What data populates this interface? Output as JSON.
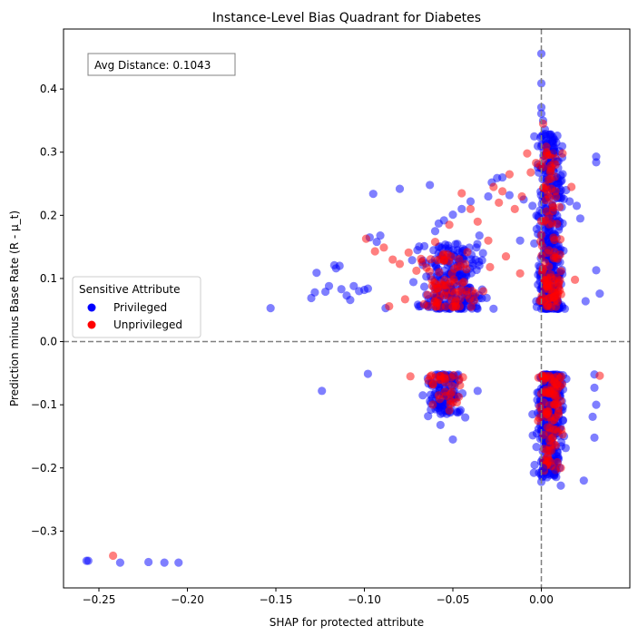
{
  "chart_data": {
    "type": "scatter",
    "title": "Instance-Level Bias Quadrant for Diabetes",
    "xlabel": "SHAP for protected attribute",
    "ylabel": "Prediction minus Base Rate (R - μ_t)",
    "xlim": [
      -0.27,
      0.05
    ],
    "ylim": [
      -0.39,
      0.495
    ],
    "xticks": [
      -0.25,
      -0.2,
      -0.15,
      -0.1,
      -0.05,
      0.0
    ],
    "xtick_labels": [
      "−0.25",
      "−0.20",
      "−0.15",
      "−0.10",
      "−0.05",
      "0.00"
    ],
    "yticks": [
      -0.3,
      -0.2,
      -0.1,
      0.0,
      0.1,
      0.2,
      0.3,
      0.4
    ],
    "ytick_labels": [
      "−0.3",
      "−0.2",
      "−0.1",
      "0.0",
      "0.1",
      "0.2",
      "0.3",
      "0.4"
    ],
    "reference_lines": {
      "x": 0.0,
      "y": 0.0,
      "style": "dashed",
      "color": "#808080"
    },
    "grid": false,
    "annotation": "Avg Distance: 0.1043",
    "legend": {
      "title": "Sensitive Attribute",
      "placement": "center-left",
      "entries": [
        {
          "label": "Privileged",
          "color": "#0000ff"
        },
        {
          "label": "Unprivileged",
          "color": "#ff0000"
        }
      ]
    },
    "series": [
      {
        "name": "Privileged",
        "color": "#0000ff",
        "opacity": 0.5,
        "points": [
          [
            -0.257,
            -0.347
          ],
          [
            -0.256,
            -0.347
          ],
          [
            -0.238,
            -0.35
          ],
          [
            -0.222,
            -0.349
          ],
          [
            -0.213,
            -0.35
          ],
          [
            -0.205,
            -0.35
          ],
          [
            -0.153,
            0.053
          ],
          [
            -0.13,
            0.069
          ],
          [
            -0.127,
            0.109
          ],
          [
            -0.128,
            0.078
          ],
          [
            -0.122,
            0.079
          ],
          [
            -0.12,
            0.088
          ],
          [
            -0.117,
            0.121
          ],
          [
            -0.116,
            0.116
          ],
          [
            -0.114,
            0.12
          ],
          [
            -0.113,
            0.083
          ],
          [
            -0.11,
            0.073
          ],
          [
            -0.108,
            0.066
          ],
          [
            -0.106,
            0.088
          ],
          [
            -0.103,
            0.08
          ],
          [
            -0.1,
            0.082
          ],
          [
            -0.098,
            0.084
          ],
          [
            -0.097,
            0.165
          ],
          [
            -0.095,
            0.234
          ],
          [
            -0.093,
            0.158
          ],
          [
            -0.091,
            0.168
          ],
          [
            -0.088,
            0.053
          ],
          [
            -0.08,
            0.242
          ],
          [
            -0.073,
            0.129
          ],
          [
            -0.07,
            0.145
          ],
          [
            -0.065,
            0.103
          ],
          [
            -0.063,
            0.248
          ],
          [
            -0.06,
            0.175
          ],
          [
            -0.058,
            0.187
          ],
          [
            -0.055,
            0.192
          ],
          [
            -0.05,
            0.201
          ],
          [
            -0.045,
            0.21
          ],
          [
            -0.04,
            0.222
          ],
          [
            -0.035,
            0.168
          ],
          [
            -0.03,
            0.23
          ],
          [
            -0.028,
            0.252
          ],
          [
            -0.025,
            0.259
          ],
          [
            -0.022,
            0.26
          ],
          [
            -0.018,
            0.232
          ],
          [
            -0.012,
            0.16
          ],
          [
            -0.01,
            0.225
          ],
          [
            -0.005,
            0.215
          ],
          [
            -0.004,
            0.325
          ],
          [
            0.0,
            0.456
          ],
          [
            0.0,
            0.409
          ],
          [
            0.0,
            0.371
          ],
          [
            0.0,
            0.361
          ],
          [
            0.001,
            0.35
          ],
          [
            0.002,
            0.336
          ],
          [
            0.005,
            0.328
          ],
          [
            0.007,
            0.303
          ],
          [
            0.009,
            0.285
          ],
          [
            0.011,
            0.263
          ],
          [
            0.014,
            0.24
          ],
          [
            0.016,
            0.222
          ],
          [
            0.02,
            0.215
          ],
          [
            0.022,
            0.195
          ],
          [
            0.031,
            0.293
          ],
          [
            0.031,
            0.284
          ],
          [
            0.031,
            0.113
          ],
          [
            0.033,
            0.076
          ],
          [
            0.025,
            0.064
          ],
          [
            -0.098,
            -0.051
          ],
          [
            -0.124,
            -0.078
          ],
          [
            -0.067,
            -0.085
          ],
          [
            -0.05,
            -0.155
          ],
          [
            -0.043,
            -0.12
          ],
          [
            -0.036,
            -0.078
          ],
          [
            -0.057,
            -0.132
          ],
          [
            -0.064,
            -0.118
          ],
          [
            0.03,
            -0.052
          ],
          [
            0.03,
            -0.073
          ],
          [
            0.031,
            -0.1
          ],
          [
            0.03,
            -0.152
          ],
          [
            0.029,
            -0.119
          ],
          [
            0.024,
            -0.22
          ],
          [
            0.011,
            -0.228
          ],
          [
            0.007,
            -0.21
          ],
          [
            0.001,
            -0.2
          ],
          [
            0.0,
            -0.222
          ],
          [
            -0.005,
            -0.115
          ]
        ]
      },
      {
        "name": "Unprivileged",
        "color": "#ff0000",
        "opacity": 0.5,
        "points": [
          [
            -0.242,
            -0.339
          ],
          [
            -0.099,
            0.163
          ],
          [
            -0.094,
            0.143
          ],
          [
            -0.089,
            0.149
          ],
          [
            -0.086,
            0.056
          ],
          [
            -0.084,
            0.13
          ],
          [
            -0.08,
            0.123
          ],
          [
            -0.077,
            0.067
          ],
          [
            -0.075,
            0.141
          ],
          [
            -0.068,
            0.131
          ],
          [
            -0.06,
            0.158
          ],
          [
            -0.052,
            0.185
          ],
          [
            -0.045,
            0.235
          ],
          [
            -0.04,
            0.21
          ],
          [
            -0.036,
            0.19
          ],
          [
            -0.03,
            0.16
          ],
          [
            -0.027,
            0.245
          ],
          [
            -0.024,
            0.22
          ],
          [
            -0.022,
            0.238
          ],
          [
            -0.02,
            0.135
          ],
          [
            -0.018,
            0.265
          ],
          [
            -0.015,
            0.21
          ],
          [
            -0.011,
            0.23
          ],
          [
            -0.008,
            0.298
          ],
          [
            -0.006,
            0.268
          ],
          [
            -0.003,
            0.283
          ],
          [
            0.001,
            0.345
          ],
          [
            0.003,
            0.3
          ],
          [
            0.008,
            0.28
          ],
          [
            0.012,
            0.298
          ],
          [
            0.017,
            0.245
          ],
          [
            0.019,
            0.098
          ],
          [
            -0.012,
            0.108
          ],
          [
            -0.029,
            0.118
          ],
          [
            -0.074,
            -0.055
          ],
          [
            -0.058,
            -0.085
          ],
          [
            -0.05,
            -0.096
          ],
          [
            -0.052,
            -0.109
          ],
          [
            0.003,
            -0.115
          ],
          [
            0.008,
            -0.12
          ],
          [
            0.012,
            -0.147
          ],
          [
            0.005,
            -0.165
          ],
          [
            0.009,
            -0.191
          ],
          [
            0.033,
            -0.054
          ],
          [
            0.011,
            -0.2
          ]
        ]
      }
    ],
    "clusters": [
      {
        "series": "Privileged",
        "xrange": [
          -0.075,
          -0.025
        ],
        "yrange": [
          0.052,
          0.155
        ],
        "count": 240
      },
      {
        "series": "Unprivileged",
        "xrange": [
          -0.074,
          -0.03
        ],
        "yrange": [
          0.055,
          0.15
        ],
        "count": 80
      },
      {
        "series": "Privileged",
        "xrange": [
          -0.006,
          0.015
        ],
        "yrange": [
          0.052,
          0.33
        ],
        "count": 420
      },
      {
        "series": "Unprivileged",
        "xrange": [
          -0.004,
          0.014
        ],
        "yrange": [
          0.055,
          0.31
        ],
        "count": 110
      },
      {
        "series": "Privileged",
        "xrange": [
          -0.068,
          -0.04
        ],
        "yrange": [
          -0.115,
          -0.052
        ],
        "count": 110
      },
      {
        "series": "Unprivileged",
        "xrange": [
          -0.066,
          -0.042
        ],
        "yrange": [
          -0.1,
          -0.053
        ],
        "count": 30
      },
      {
        "series": "Privileged",
        "xrange": [
          -0.006,
          0.016
        ],
        "yrange": [
          -0.215,
          -0.052
        ],
        "count": 360
      },
      {
        "series": "Unprivileged",
        "xrange": [
          -0.004,
          0.015
        ],
        "yrange": [
          -0.205,
          -0.053
        ],
        "count": 90
      }
    ]
  }
}
